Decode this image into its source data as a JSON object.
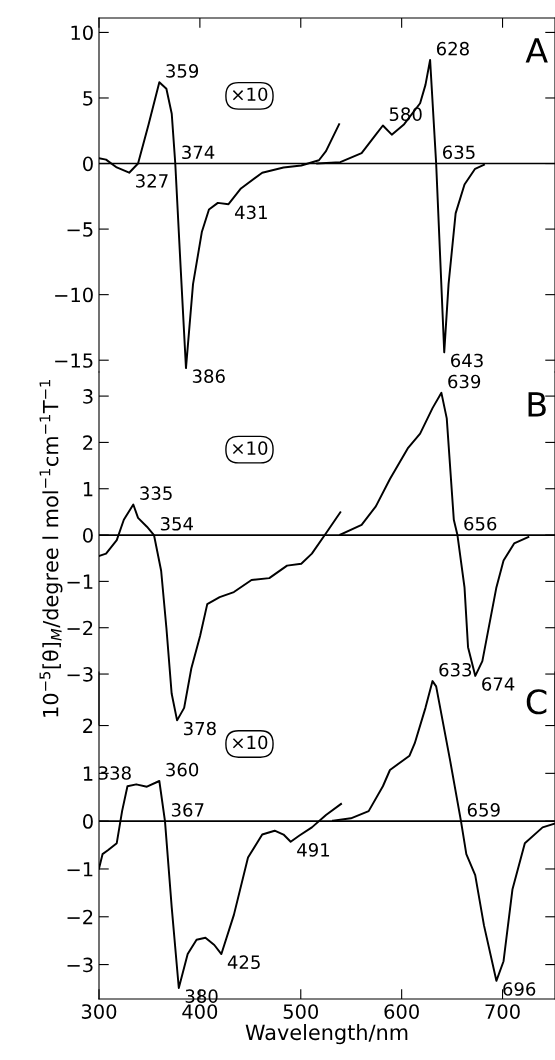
{
  "chart_data": [
    {
      "type": "line",
      "xlim": [
        300,
        752
      ],
      "xticks": [
        300,
        400,
        500,
        600,
        700
      ],
      "ylim": [
        -15.9,
        11.1
      ],
      "yticks": [
        -15,
        -10,
        -5,
        0,
        5,
        10
      ],
      "tick_labels": "y",
      "grid": false,
      "legend": false,
      "marker": "none",
      "line_style": "solid",
      "ref_lines": [
        {
          "axis": "y",
          "value": 0,
          "color": "#000000"
        }
      ],
      "annotations": [
        "A",
        "×10",
        {
          "text": "359",
          "x": 359.8,
          "y": 6.2
        },
        {
          "text": "327",
          "x": 329.9,
          "y": -0.7
        },
        {
          "text": "374",
          "x": 375.6,
          "y": 0
        },
        {
          "text": "386",
          "x": 386.2,
          "y": -15.6
        },
        {
          "text": "431",
          "x": 428.4,
          "y": -3.1
        },
        {
          "text": "580",
          "x": 581.4,
          "y": 2.9
        },
        {
          "text": "628",
          "x": 628.2,
          "y": 7.9
        },
        {
          "text": "635",
          "x": 634.2,
          "y": 0
        },
        {
          "text": "643",
          "x": 642.2,
          "y": -14.4
        }
      ],
      "series": [
        {
          "color": "#000000",
          "x": [
            300,
            307,
            317.6,
            329.9,
            338.7,
            349.2,
            359.8,
            366.8,
            372.1,
            375.6,
            380.9,
            386.2,
            393.2,
            402,
            409,
            417.8,
            428.4,
            440.7,
            461.8,
            482.9,
            500.5,
            518,
            525,
            538
          ],
          "values": [
            0.4,
            0.3,
            -0.3,
            -0.7,
            0,
            3.0,
            6.2,
            5.7,
            3.8,
            0,
            -7.9,
            -15.6,
            -9.2,
            -5.2,
            -3.5,
            -3.0,
            -3.1,
            -1.9,
            -0.7,
            -0.3,
            -0.15,
            0.25,
            0.95,
            3.0
          ]
        },
        {
          "color": "#000000",
          "x": [
            516.3,
            539.2,
            560.3,
            574.4,
            581.4,
            590.2,
            602.5,
            618.3,
            623.6,
            628.2,
            634.2,
            642.2,
            646.5,
            653.5,
            662.3,
            672.8,
            681.6
          ],
          "values": [
            0,
            0.1,
            0.8,
            2.2,
            2.9,
            2.2,
            3.0,
            4.6,
            6.0,
            7.9,
            0,
            -14.4,
            -9.2,
            -3.8,
            -1.6,
            -0.4,
            -0.1
          ]
        }
      ]
    },
    {
      "type": "line",
      "xlim": [
        300,
        752
      ],
      "xticks": [
        300,
        400,
        500,
        600,
        700
      ],
      "ylim": [
        -4.1,
        3.52
      ],
      "yticks": [
        -3,
        -2,
        -1,
        0,
        1,
        2,
        3
      ],
      "tick_labels": "y",
      "grid": false,
      "legend": false,
      "marker": "none",
      "line_style": "solid",
      "ylabel": "10$^{−5}$[θ]$_{M}$/degree l mol$^{−1}$cm$^{−1}$T$^{−1}$",
      "ref_lines": [
        {
          "axis": "y",
          "value": 0,
          "color": "#000000"
        }
      ],
      "annotations": [
        "B",
        "×10",
        {
          "text": "335",
          "x": 334,
          "y": 0.66
        },
        {
          "text": "354",
          "x": 354.5,
          "y": 0
        },
        {
          "text": "378",
          "x": 377.4,
          "y": -4.0
        },
        {
          "text": "639",
          "x": 639.4,
          "y": 3.07
        },
        {
          "text": "656",
          "x": 655.3,
          "y": 0
        },
        {
          "text": "674",
          "x": 673,
          "y": -3.04
        }
      ],
      "series": [
        {
          "color": "#000000",
          "x": [
            300,
            307,
            317.6,
            324.6,
            334,
            338.7,
            347.5,
            354.5,
            361.6,
            366.8,
            372,
            377.4,
            384.4,
            391.5,
            400.2,
            407.3,
            419.6,
            433.7,
            451.2,
            468.8,
            486.4,
            500.5,
            511,
            525,
            539.2
          ],
          "values": [
            -0.45,
            -0.4,
            -0.11,
            0.33,
            0.66,
            0.37,
            0.18,
            0,
            -0.77,
            -2.0,
            -3.42,
            -4.0,
            -3.73,
            -2.88,
            -2.18,
            -1.49,
            -1.34,
            -1.23,
            -0.97,
            -0.93,
            -0.66,
            -0.62,
            -0.4,
            0.04,
            0.49
          ]
        },
        {
          "color": "#000000",
          "x": [
            539.2,
            560.3,
            574.4,
            588.4,
            606,
            618.3,
            630.6,
            639.4,
            644.7,
            651.7,
            655.3,
            662.3,
            665.8,
            673,
            680,
            693.9,
            701,
            711.5,
            725.6
          ],
          "values": [
            0.01,
            0.22,
            0.62,
            1.21,
            1.87,
            2.19,
            2.74,
            3.07,
            2.52,
            0.33,
            0,
            -1.13,
            -2.42,
            -3.04,
            -2.72,
            -1.13,
            -0.55,
            -0.18,
            -0.04
          ]
        }
      ]
    },
    {
      "type": "line",
      "xlim": [
        300,
        752
      ],
      "xticks": [
        300,
        400,
        500,
        600,
        700
      ],
      "ylim": [
        -3.72,
        3.12
      ],
      "yticks": [
        -3,
        -2,
        -1,
        0,
        1,
        2
      ],
      "grid": false,
      "legend": false,
      "marker": "none",
      "line_style": "solid",
      "xlabel": "Wavelength/nm",
      "ref_lines": [
        {
          "axis": "y",
          "value": 0,
          "color": "#000000"
        }
      ],
      "annotations": [
        "C",
        "×10",
        {
          "text": "338",
          "x": 336.9,
          "y": 0.77
        },
        {
          "text": "360",
          "x": 359.8,
          "y": 0.84
        },
        {
          "text": "367",
          "x": 365.4,
          "y": 0
        },
        {
          "text": "380",
          "x": 379.1,
          "y": -3.49
        },
        {
          "text": "425",
          "x": 421.3,
          "y": -2.78
        },
        {
          "text": "491",
          "x": 490,
          "y": -0.43
        },
        {
          "text": "633",
          "x": 630.6,
          "y": 2.93
        },
        {
          "text": "659",
          "x": 658.8,
          "y": 0
        },
        {
          "text": "696",
          "x": 693.9,
          "y": -3.34
        }
      ],
      "series": [
        {
          "color": "#000000",
          "x": [
            300,
            303.5,
            308.8,
            317.6,
            322.9,
            328.2,
            336.9,
            347.5,
            359.8,
            365.4,
            372.1,
            379.1,
            387.9,
            396.7,
            405.5,
            414.3,
            421.3,
            433.7,
            447.7,
            461.8,
            474.1,
            482.9,
            490,
            498.7,
            511,
            525,
            539.9
          ],
          "values": [
            -0.99,
            -0.69,
            -0.61,
            -0.46,
            0.21,
            0.73,
            0.77,
            0.72,
            0.84,
            0,
            -1.81,
            -3.49,
            -2.78,
            -2.48,
            -2.44,
            -2.59,
            -2.78,
            -1.96,
            -0.76,
            -0.28,
            -0.2,
            -0.28,
            -0.43,
            -0.3,
            -0.13,
            0.13,
            0.36
          ]
        },
        {
          "color": "#000000",
          "x": [
            532,
            549.7,
            567.3,
            581.4,
            588.4,
            607.8,
            613,
            623.6,
            630.6,
            634.2,
            648.2,
            658.8,
            664.1,
            672.9,
            681.6,
            693.9,
            701,
            709.8,
            722.1,
            739.7,
            752
          ],
          "values": [
            0.01,
            0.06,
            0.21,
            0.73,
            1.07,
            1.37,
            1.63,
            2.37,
            2.93,
            2.82,
            1.25,
            0,
            -0.69,
            -1.13,
            -2.18,
            -3.34,
            -2.93,
            -1.43,
            -0.46,
            -0.13,
            -0.05
          ]
        }
      ]
    }
  ]
}
